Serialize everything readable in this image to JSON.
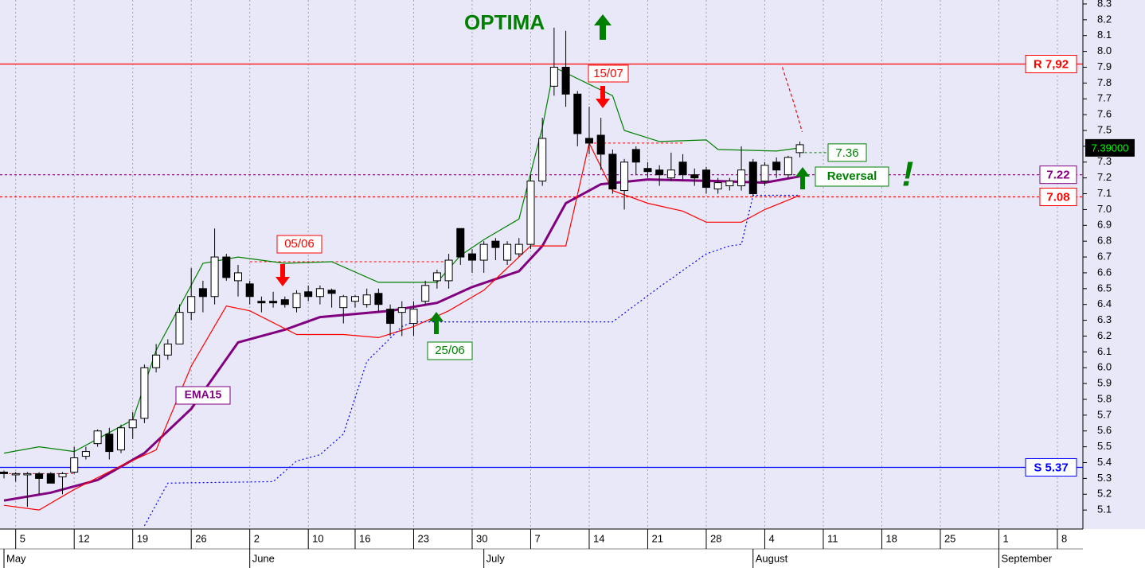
{
  "chart_data": {
    "type": "candlestick",
    "title": "OPTIMA",
    "xlim": [
      -0.34,
      92.18
    ],
    "ylim": [
      4.98,
      8.325
    ],
    "yticks": [
      5.1,
      5.2,
      5.3,
      5.4,
      5.5,
      5.6,
      5.7,
      5.8,
      5.9,
      {
        "value": 6,
        "label": "6.0"
      },
      6.1,
      6.2,
      6.3,
      6.4,
      6.5,
      6.6,
      6.7,
      6.8,
      6.9,
      {
        "value": 7,
        "label": "7.0"
      },
      7.1,
      7.2,
      7.3,
      7.4,
      7.5,
      7.6,
      7.7,
      7.8,
      7.9,
      {
        "value": 8,
        "label": "8.0"
      },
      8.1,
      8.2,
      8.3
    ],
    "xticks": [
      {
        "value": 1,
        "label": "5"
      },
      {
        "value": 6,
        "label": "12"
      },
      {
        "value": 11,
        "label": "19"
      },
      {
        "value": 16,
        "label": "26"
      },
      {
        "value": 21,
        "label": "2"
      },
      {
        "value": 26,
        "label": "10"
      },
      {
        "value": 30,
        "label": "16"
      },
      {
        "value": 35,
        "label": "23"
      },
      {
        "value": 40,
        "label": "30"
      },
      {
        "value": 45,
        "label": "7"
      },
      {
        "value": 50,
        "label": "14"
      },
      {
        "value": 55,
        "label": "21"
      },
      {
        "value": 60,
        "label": "28"
      },
      {
        "value": 65,
        "label": "4"
      },
      {
        "value": 70,
        "label": "11"
      },
      {
        "value": 75,
        "label": "18"
      },
      {
        "value": 80,
        "label": "25"
      },
      {
        "value": 85,
        "label": "1"
      },
      {
        "value": 90,
        "label": "8"
      }
    ],
    "month_ticks": [
      {
        "value": 0,
        "label": "May"
      },
      {
        "value": 21,
        "label": "June"
      },
      {
        "value": 41,
        "label": "July"
      },
      {
        "value": 64,
        "label": "August"
      },
      {
        "value": 85,
        "label": "September"
      }
    ],
    "grid": true,
    "candles": {
      "x": [
        0,
        1,
        2,
        3,
        4,
        5,
        6,
        7,
        8,
        9,
        10,
        11,
        12,
        13,
        14,
        15,
        16,
        17,
        18,
        19,
        20,
        21,
        22,
        23,
        24,
        25,
        26,
        27,
        28,
        29,
        30,
        31,
        32,
        33,
        34,
        35,
        36,
        37,
        38,
        39,
        40,
        41,
        42,
        43,
        44,
        45,
        46,
        47,
        48,
        49,
        50,
        51,
        52,
        53,
        54,
        55,
        56,
        57,
        58,
        59,
        60,
        61,
        62,
        63,
        64,
        65,
        66,
        67,
        68
      ],
      "open": [
        5.34,
        5.33,
        5.33,
        5.33,
        5.33,
        5.31,
        5.34,
        5.44,
        5.52,
        5.58,
        5.48,
        5.62,
        5.68,
        6.0,
        6.08,
        6.15,
        6.35,
        6.5,
        6.45,
        6.7,
        6.55,
        6.53,
        6.42,
        6.42,
        6.43,
        6.38,
        6.48,
        6.45,
        6.49,
        6.38,
        6.42,
        6.4,
        6.47,
        6.37,
        6.35,
        6.28,
        6.42,
        6.55,
        6.55,
        6.88,
        6.72,
        6.68,
        6.8,
        6.68,
        6.72,
        6.78,
        7.18,
        7.78,
        7.9,
        7.73,
        7.45,
        7.47,
        7.35,
        7.12,
        7.38,
        7.26,
        7.25,
        7.2,
        7.3,
        7.22,
        7.25,
        7.13,
        7.15,
        7.15,
        7.3,
        7.18,
        7.3,
        7.22,
        7.36
      ],
      "high": [
        5.35,
        5.34,
        5.34,
        5.34,
        5.34,
        5.34,
        5.5,
        5.5,
        5.61,
        5.62,
        5.64,
        5.72,
        6.02,
        6.15,
        6.18,
        6.4,
        6.63,
        6.55,
        6.88,
        6.72,
        6.65,
        6.55,
        6.45,
        6.48,
        6.45,
        6.49,
        6.52,
        6.52,
        6.5,
        6.46,
        6.46,
        6.5,
        6.5,
        6.4,
        6.42,
        6.42,
        6.55,
        6.62,
        6.72,
        6.88,
        6.75,
        6.8,
        6.82,
        6.8,
        6.82,
        7.22,
        7.58,
        8.15,
        8.13,
        7.75,
        7.65,
        7.58,
        7.38,
        7.32,
        7.4,
        7.3,
        7.28,
        7.36,
        7.35,
        7.26,
        7.27,
        7.2,
        7.2,
        7.4,
        7.32,
        7.3,
        7.33,
        7.34,
        7.43
      ],
      "low": [
        5.3,
        5.28,
        5.12,
        5.2,
        5.27,
        5.2,
        5.33,
        5.42,
        5.5,
        5.42,
        5.46,
        5.55,
        5.65,
        5.97,
        6.05,
        6.15,
        6.3,
        6.35,
        6.4,
        6.55,
        6.45,
        6.4,
        6.35,
        6.38,
        6.38,
        6.35,
        6.42,
        6.4,
        6.38,
        6.28,
        6.38,
        6.38,
        6.35,
        6.2,
        6.2,
        6.2,
        6.4,
        6.5,
        6.5,
        6.65,
        6.6,
        6.6,
        6.68,
        6.65,
        6.7,
        6.75,
        7.15,
        7.72,
        7.65,
        7.4,
        7.35,
        7.25,
        7.1,
        7.0,
        7.22,
        7.2,
        7.15,
        7.18,
        7.18,
        7.15,
        7.1,
        7.1,
        7.12,
        7.12,
        7.08,
        7.15,
        7.2,
        7.2,
        7.33
      ],
      "close": [
        5.33,
        5.33,
        5.33,
        5.3,
        5.27,
        5.33,
        5.43,
        5.47,
        5.6,
        5.47,
        5.62,
        5.67,
        6.0,
        6.08,
        6.15,
        6.35,
        6.45,
        6.45,
        6.7,
        6.57,
        6.6,
        6.45,
        6.41,
        6.41,
        6.4,
        6.47,
        6.45,
        6.5,
        6.47,
        6.45,
        6.45,
        6.46,
        6.4,
        6.28,
        6.38,
        6.37,
        6.52,
        6.6,
        6.68,
        6.7,
        6.68,
        6.78,
        6.76,
        6.78,
        6.78,
        7.18,
        7.45,
        7.9,
        7.73,
        7.48,
        7.42,
        7.35,
        7.13,
        7.3,
        7.3,
        7.24,
        7.22,
        7.25,
        7.22,
        7.2,
        7.14,
        7.17,
        7.18,
        7.25,
        7.1,
        7.28,
        7.25,
        7.33,
        7.41
      ]
    },
    "series": [
      {
        "name": "EMA15",
        "color": "#800080",
        "style": "thick",
        "x": [
          0,
          4,
          8,
          12,
          16,
          20,
          24,
          27,
          33,
          37,
          40,
          44,
          46,
          48,
          51,
          55,
          61,
          65,
          68
        ],
        "values": [
          5.16,
          5.21,
          5.29,
          5.46,
          5.74,
          6.16,
          6.24,
          6.32,
          6.36,
          6.41,
          6.51,
          6.61,
          6.77,
          7.04,
          7.16,
          7.19,
          7.18,
          7.17,
          7.21
        ]
      },
      {
        "color": "#008000",
        "style": "solid",
        "x": [
          0,
          3,
          6,
          11,
          13,
          17,
          20,
          24,
          28,
          32,
          37,
          39,
          41,
          44,
          46,
          47,
          52,
          53,
          56,
          60,
          61,
          66,
          68
        ],
        "values": [
          5.46,
          5.5,
          5.47,
          5.67,
          6.11,
          6.66,
          6.7,
          6.66,
          6.67,
          6.54,
          6.54,
          6.71,
          6.81,
          6.94,
          7.52,
          7.9,
          7.72,
          7.5,
          7.43,
          7.44,
          7.38,
          7.37,
          7.39
        ]
      },
      {
        "color": "#ff0000",
        "style": "solid",
        "x": [
          0,
          3,
          6,
          10,
          13,
          16,
          19,
          21,
          25,
          29,
          32,
          35,
          38,
          41,
          45,
          48,
          50,
          52,
          55,
          58,
          60,
          63,
          65,
          68
        ],
        "values": [
          5.13,
          5.1,
          5.23,
          5.38,
          5.48,
          6.01,
          6.39,
          6.36,
          6.21,
          6.21,
          6.19,
          6.26,
          6.36,
          6.49,
          6.77,
          6.77,
          7.42,
          7.12,
          7.04,
          6.99,
          6.92,
          6.92,
          7.0,
          7.09
        ]
      },
      {
        "color": "#0000ff",
        "style": "dotted",
        "x": [
          12,
          14,
          23,
          25,
          27,
          29,
          31,
          34,
          35,
          52,
          56,
          60,
          62,
          63,
          64,
          68
        ],
        "values": [
          5.0,
          5.27,
          5.28,
          5.41,
          5.45,
          5.58,
          6.04,
          6.26,
          6.29,
          6.29,
          6.51,
          6.72,
          6.77,
          6.78,
          7.09,
          7.09
        ]
      },
      {
        "color": "#ff0000",
        "style": "dashed",
        "x": [
          66.5,
          67.5,
          68.2
        ],
        "values": [
          7.9,
          7.67,
          7.49
        ]
      }
    ],
    "segments": [
      {
        "from": 0,
        "to": 6,
        "value": 5.33,
        "color": "#ff0000"
      },
      {
        "from": 21,
        "to": 38,
        "value": 6.67,
        "color": "#ff0000"
      },
      {
        "from": 50,
        "to": 58,
        "value": 7.42,
        "color": "#ff0000"
      }
    ],
    "levels": [
      {
        "label": "R 7,92",
        "value": 7.92,
        "color": "#ff0000",
        "style": "solid"
      },
      {
        "label": "S 5.37",
        "value": 5.37,
        "color": "#0000ff",
        "style": "solid"
      },
      {
        "label": "7.22",
        "value": 7.22,
        "color": "#800080",
        "style": "dashed"
      },
      {
        "label": "7.08",
        "value": 7.08,
        "color": "#ff0000",
        "style": "dashed"
      }
    ],
    "last_marker": {
      "label": "7.36",
      "value": 7.36,
      "color": "#008000"
    },
    "last_price": {
      "label": "7.39000",
      "value": 7.39
    },
    "annotations": [
      "15/07",
      "05/06",
      "25/06",
      "Reversal",
      "!"
    ]
  }
}
